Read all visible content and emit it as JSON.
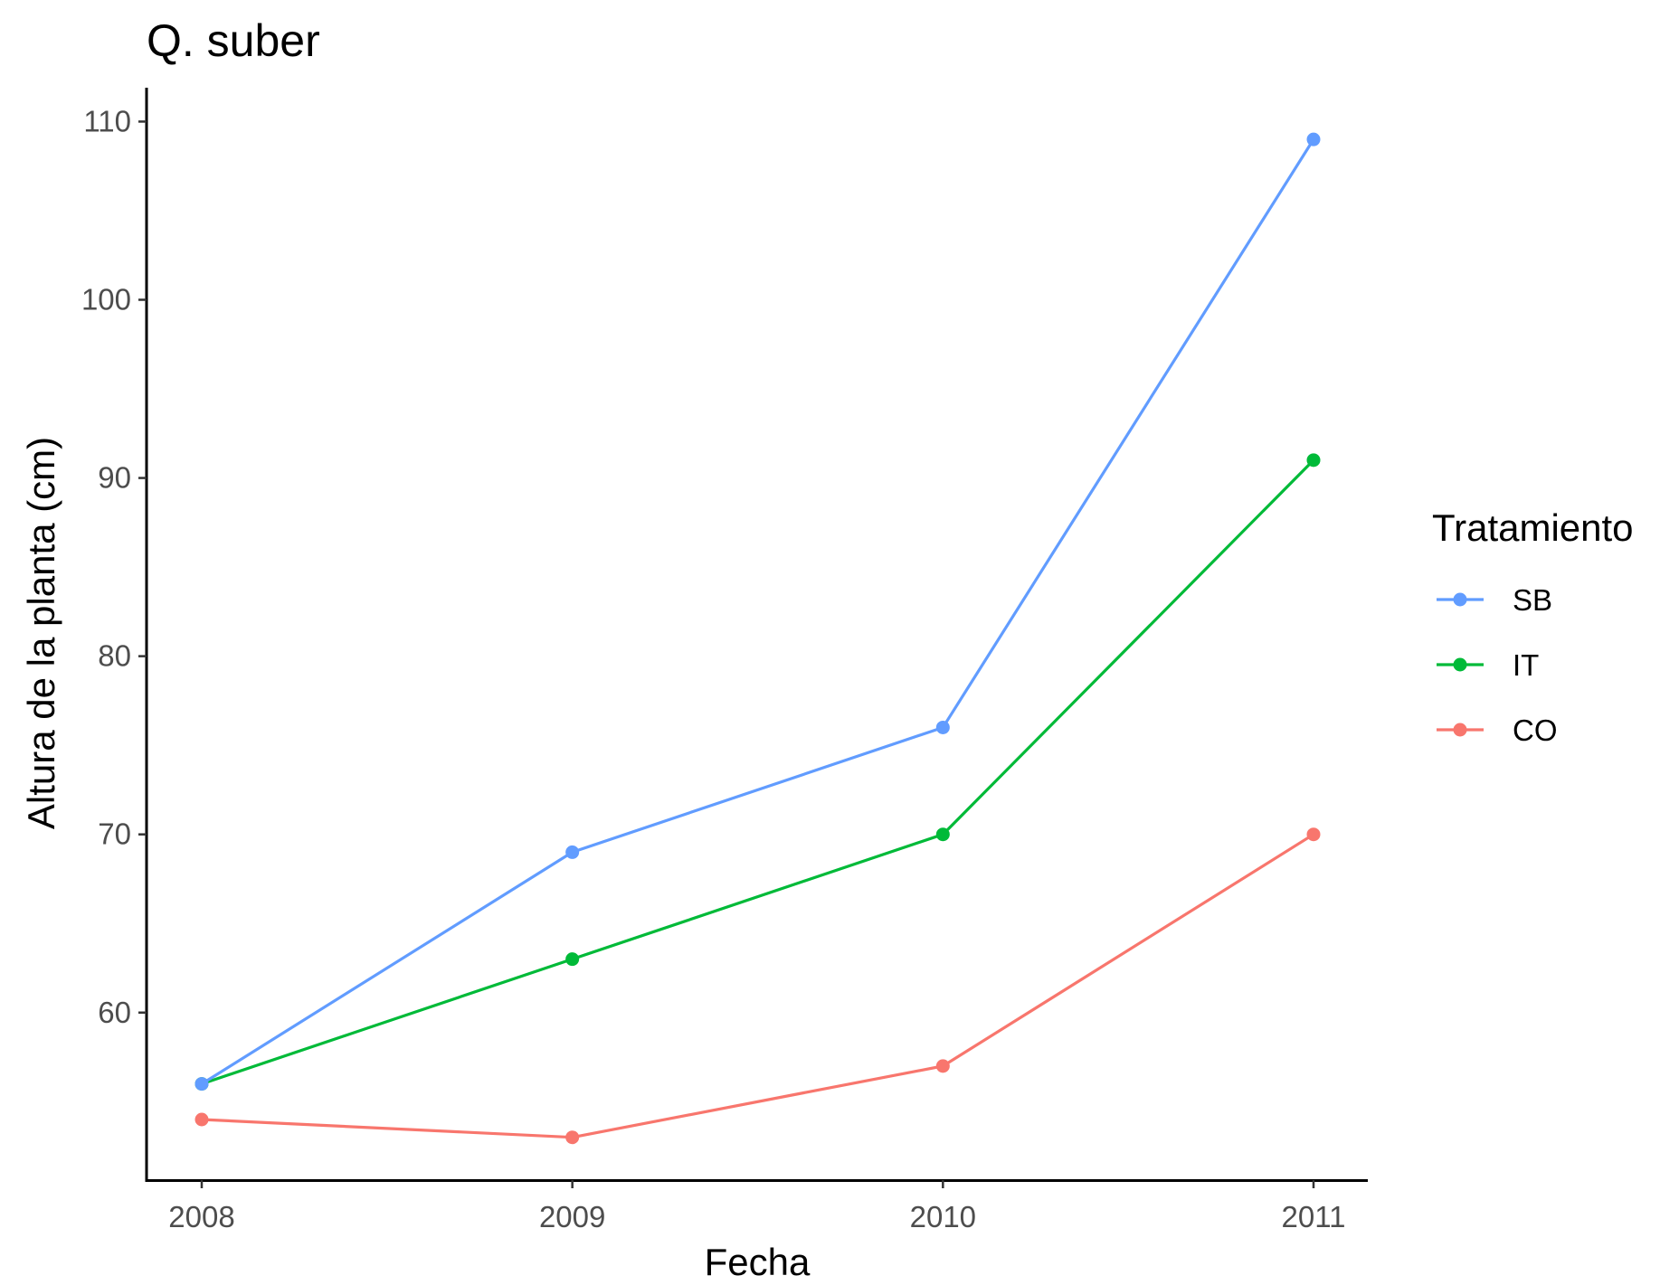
{
  "chart_data": {
    "type": "line",
    "title": "Q. suber",
    "xlabel": "Fecha",
    "ylabel": "Altura de la planta (cm)",
    "x": [
      "2008",
      "2009",
      "2010",
      "2011"
    ],
    "ylim": [
      50.6,
      111.9
    ],
    "yticks": [
      "60",
      "70",
      "80",
      "90",
      "100",
      "110"
    ],
    "grid": false,
    "legend": {
      "title": "Tratamiento",
      "position": "right"
    },
    "series": [
      {
        "name": "SB",
        "color": "#619CFF",
        "values": [
          56,
          69,
          76,
          109
        ]
      },
      {
        "name": "IT",
        "color": "#00BA38",
        "values": [
          56,
          63,
          70,
          91
        ]
      },
      {
        "name": "CO",
        "color": "#F8766D",
        "values": [
          54,
          53,
          57,
          70
        ]
      }
    ]
  }
}
